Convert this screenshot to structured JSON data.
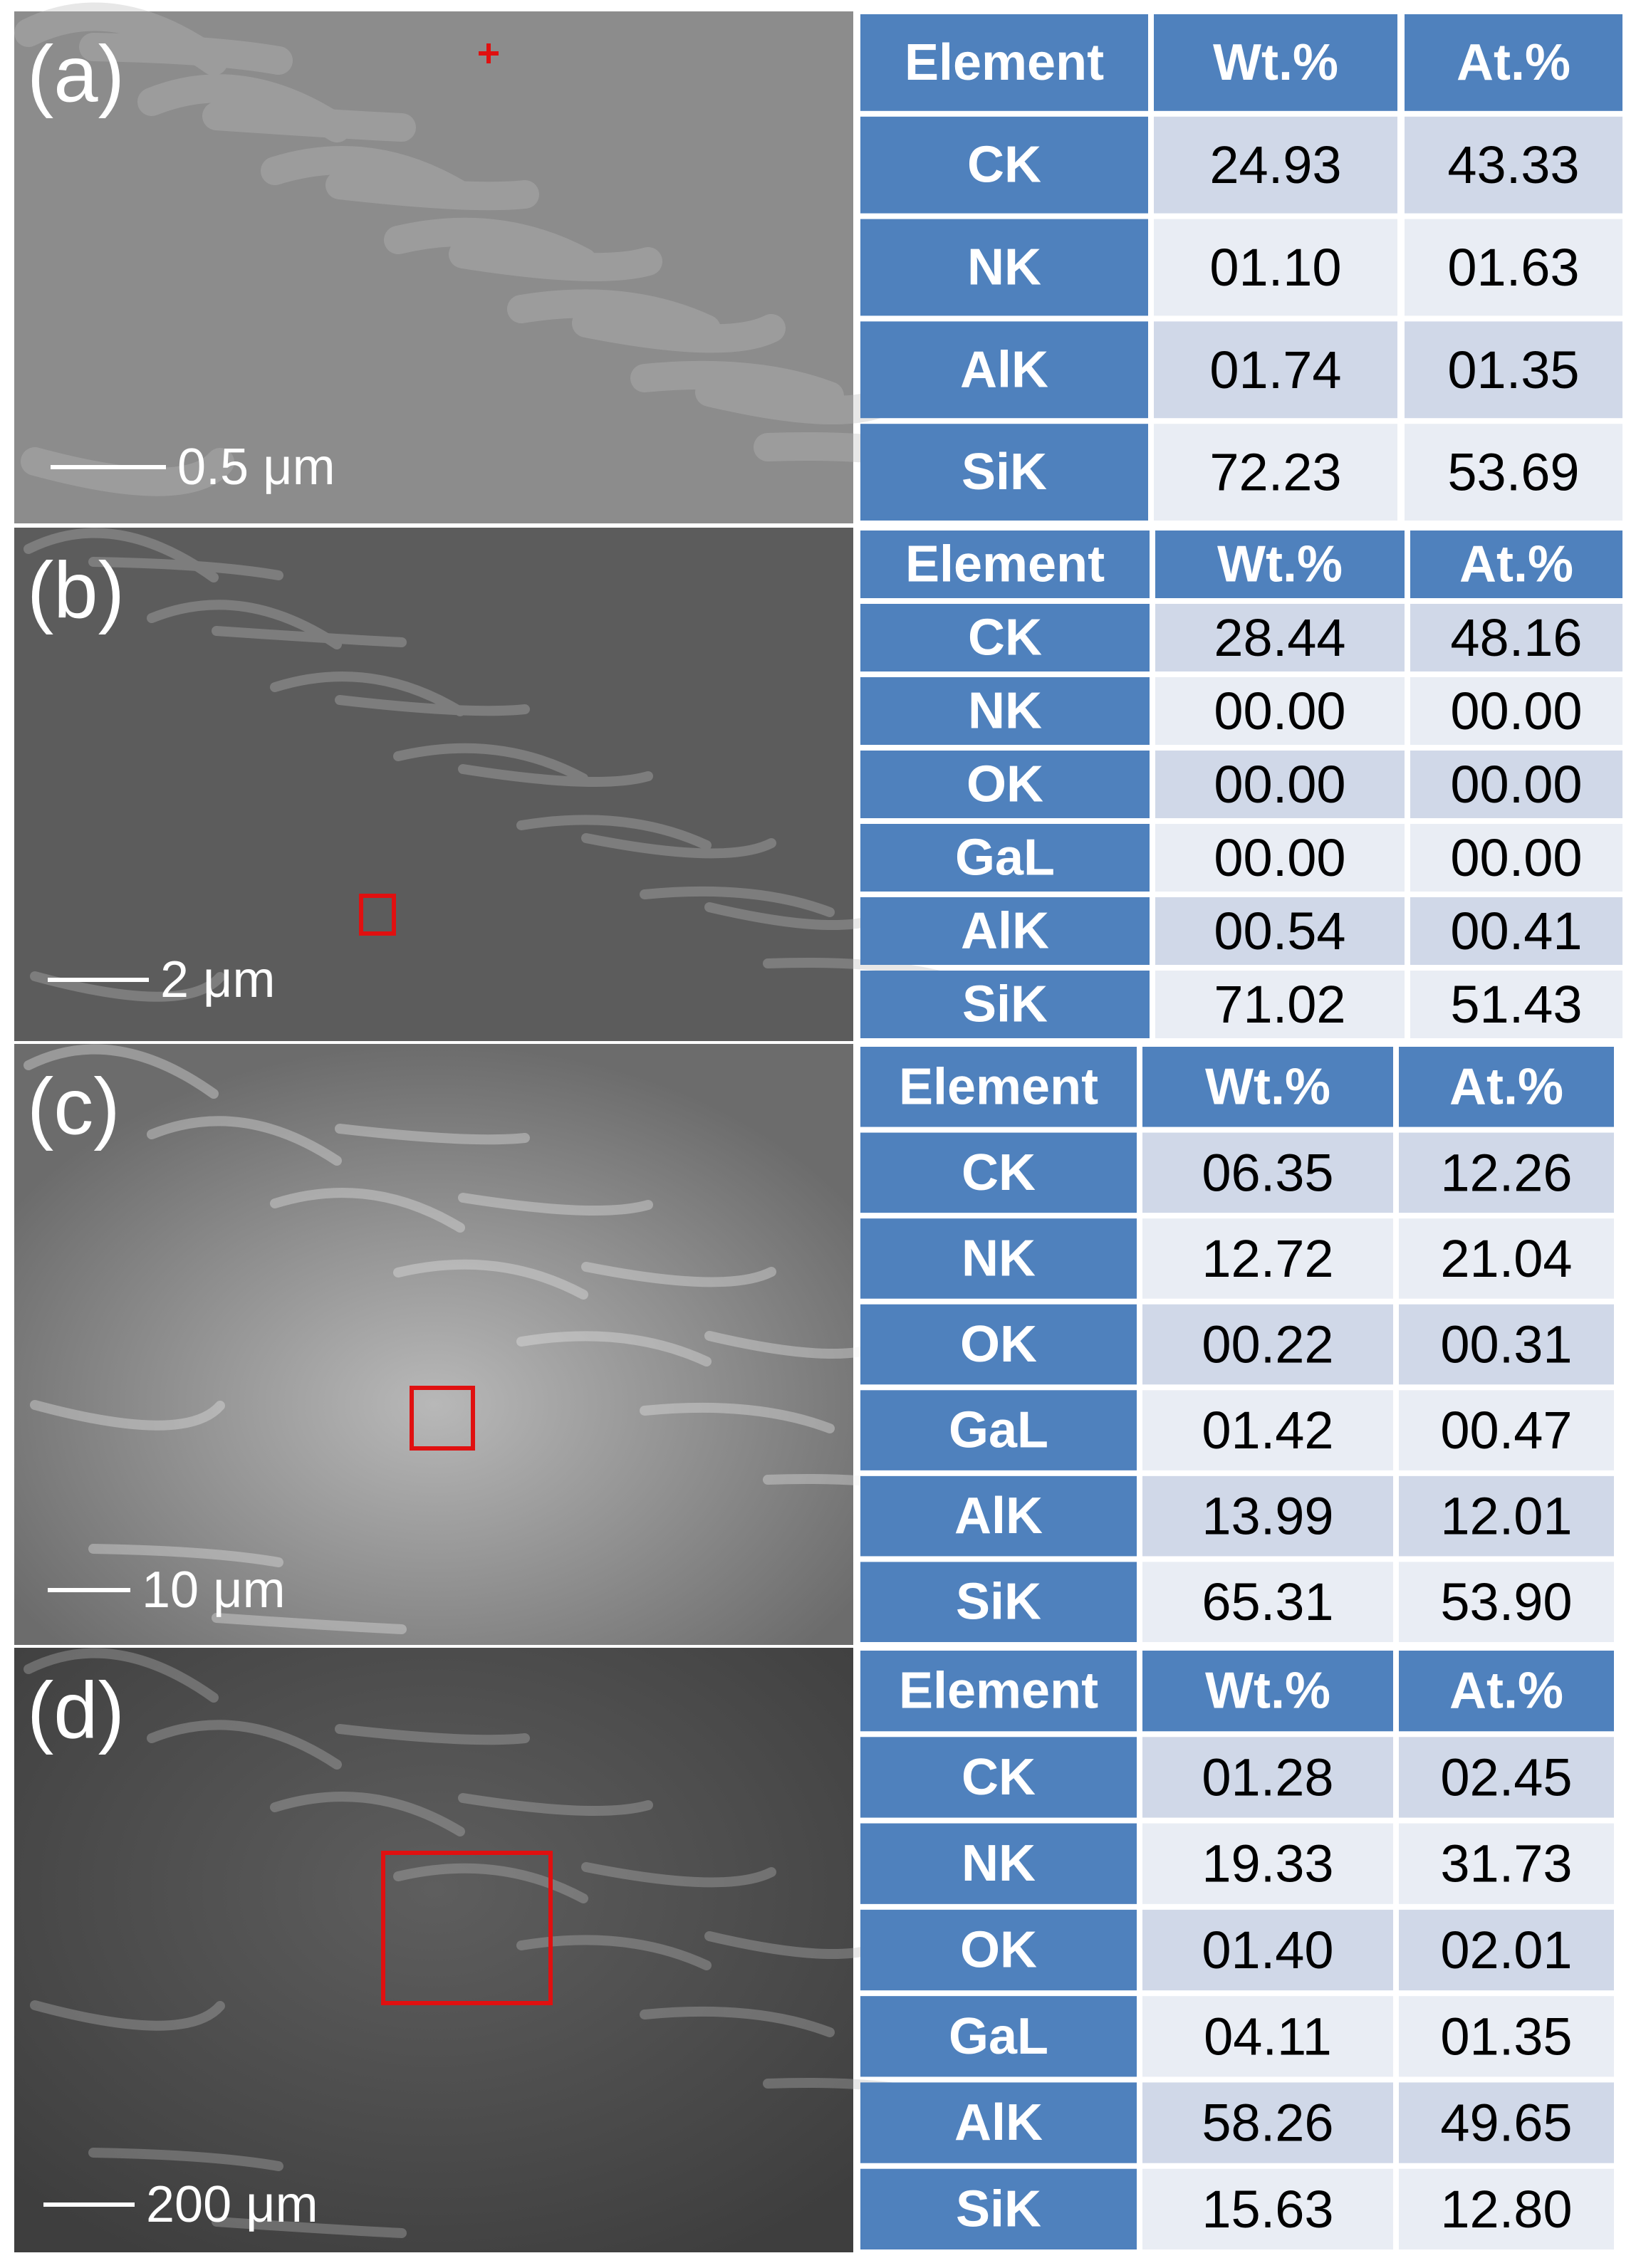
{
  "panels": [
    {
      "label": "(a)",
      "scale_bar": "0.5 μm",
      "table": {
        "header": [
          "Element",
          "Wt.%",
          "At.%"
        ],
        "rows": [
          [
            "CK",
            "24.93",
            "43.33"
          ],
          [
            "NK",
            "01.10",
            "01.63"
          ],
          [
            "AlK",
            "01.74",
            "01.35"
          ],
          [
            "SiK",
            "72.23",
            "53.69"
          ]
        ]
      }
    },
    {
      "label": "(b)",
      "scale_bar": "2 μm",
      "table": {
        "header": [
          "Element",
          "Wt.%",
          "At.%"
        ],
        "rows": [
          [
            "CK",
            "28.44",
            "48.16"
          ],
          [
            "NK",
            "00.00",
            "00.00"
          ],
          [
            "OK",
            "00.00",
            "00.00"
          ],
          [
            "GaL",
            "00.00",
            "00.00"
          ],
          [
            "AlK",
            "00.54",
            "00.41"
          ],
          [
            "SiK",
            "71.02",
            "51.43"
          ]
        ]
      }
    },
    {
      "label": "(c)",
      "scale_bar": "10 μm",
      "table": {
        "header": [
          "Element",
          "Wt.%",
          "At.%"
        ],
        "rows": [
          [
            "CK",
            "06.35",
            "12.26"
          ],
          [
            "NK",
            "12.72",
            "21.04"
          ],
          [
            "OK",
            "00.22",
            "00.31"
          ],
          [
            "GaL",
            "01.42",
            "00.47"
          ],
          [
            "AlK",
            "13.99",
            "12.01"
          ],
          [
            "SiK",
            "65.31",
            "53.90"
          ]
        ]
      }
    },
    {
      "label": "(d)",
      "scale_bar": "200 μm",
      "table": {
        "header": [
          "Element",
          "Wt.%",
          "At.%"
        ],
        "rows": [
          [
            "CK",
            "01.28",
            "02.45"
          ],
          [
            "NK",
            "19.33",
            "31.73"
          ],
          [
            "OK",
            "01.40",
            "02.01"
          ],
          [
            "GaL",
            "04.11",
            "01.35"
          ],
          [
            "AlK",
            "58.26",
            "49.65"
          ],
          [
            "SiK",
            "15.63",
            "12.80"
          ]
        ]
      }
    }
  ]
}
